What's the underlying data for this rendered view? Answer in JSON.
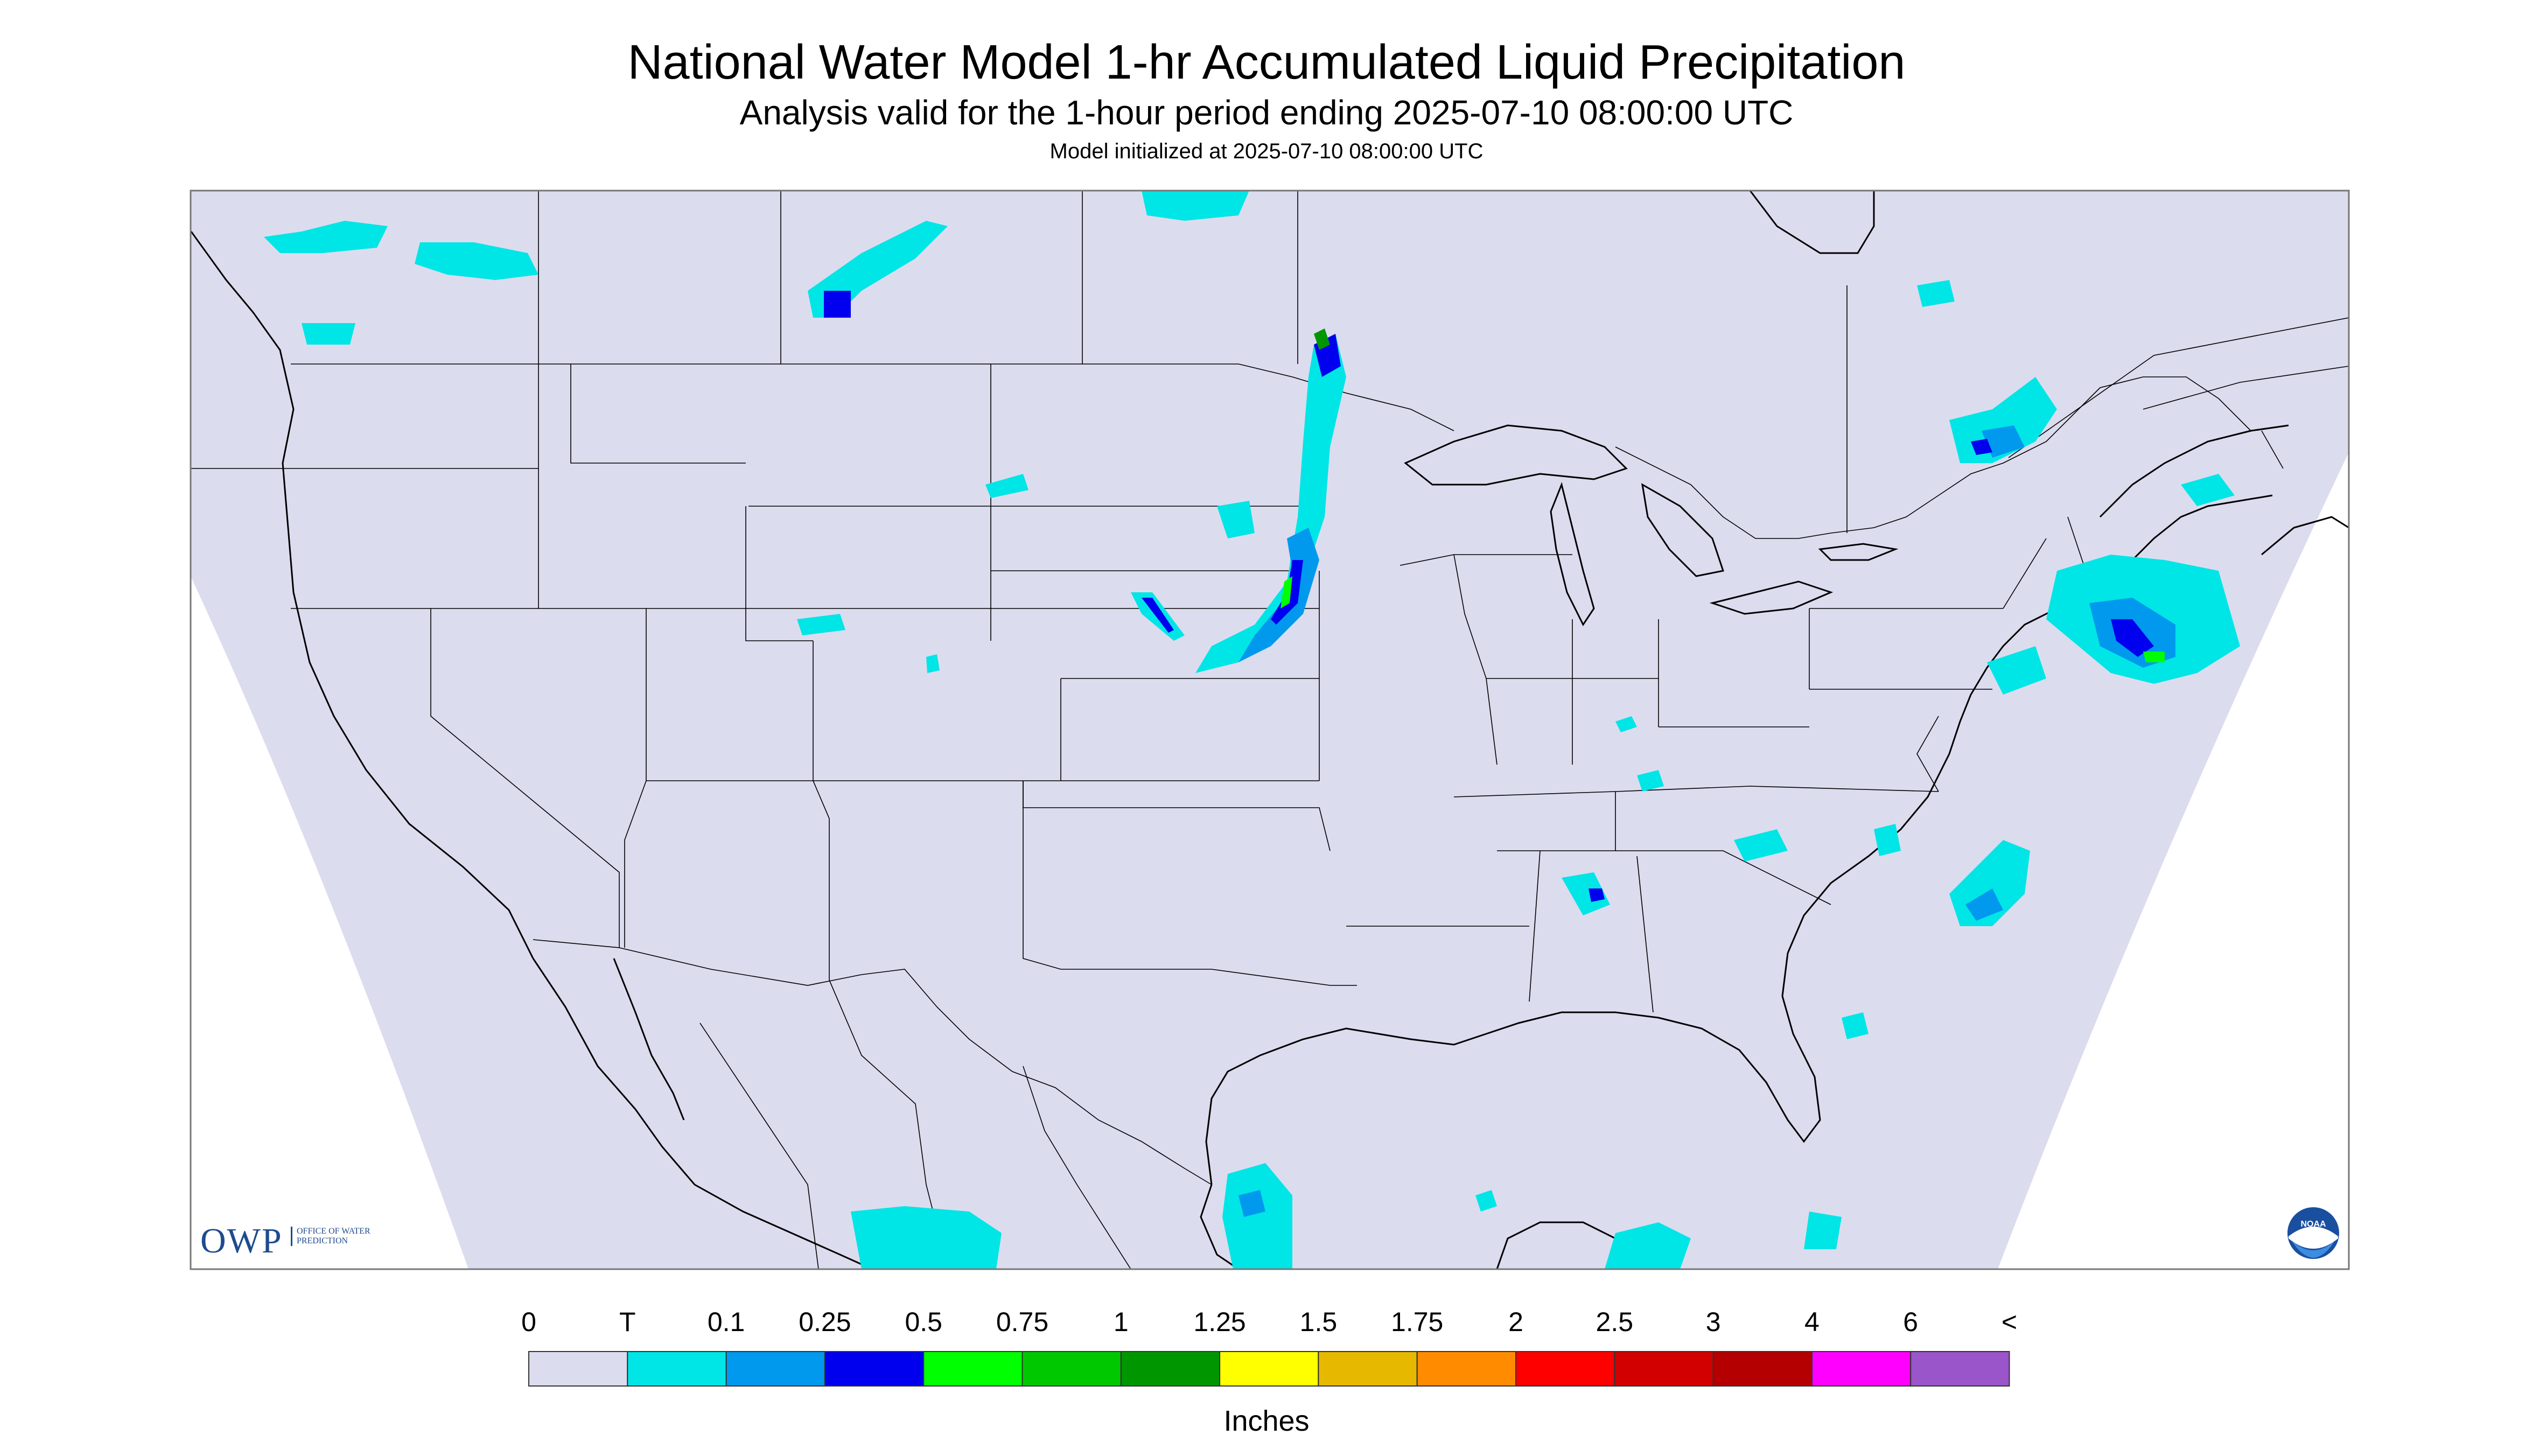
{
  "header": {
    "title": "National Water Model 1-hr Accumulated Liquid Precipitation",
    "subtitle": "Analysis valid for the 1-hour period ending 2025-07-10 08:00:00 UTC",
    "init": "Model initialized at 2025-07-10 08:00:00 UTC"
  },
  "legend": {
    "labels": [
      "0",
      "T",
      "0.1",
      "0.25",
      "0.5",
      "0.75",
      "1",
      "1.25",
      "1.5",
      "1.75",
      "2",
      "2.5",
      "3",
      "4",
      "6",
      "<"
    ],
    "colors": [
      "#dcdcef",
      "#00e5e5",
      "#0099ee",
      "#0000ee",
      "#00ff00",
      "#00c800",
      "#009600",
      "#ffff00",
      "#e6b800",
      "#ff8c00",
      "#ff0000",
      "#d20000",
      "#b40000",
      "#ff00ff",
      "#9955c9"
    ],
    "units": "Inches"
  },
  "logos": {
    "owp": "OWP",
    "owp_sub": "OFFICE OF WATER PREDICTION",
    "noaa": "NOAA"
  },
  "colors": {
    "domain_fill": "#dcdcef",
    "boundary": "#000000"
  }
}
